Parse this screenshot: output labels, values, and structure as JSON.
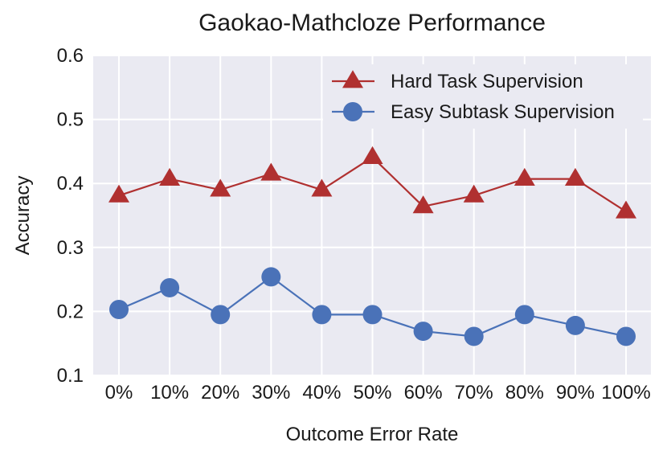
{
  "chart_data": {
    "type": "line",
    "title": "Gaokao-Mathcloze Performance",
    "xlabel": "Outcome Error Rate",
    "ylabel": "Accuracy",
    "categories": [
      "0%",
      "10%",
      "20%",
      "30%",
      "40%",
      "50%",
      "60%",
      "70%",
      "80%",
      "90%",
      "100%"
    ],
    "ylim": [
      0.1,
      0.6
    ],
    "yticks": [
      "0.1",
      "0.2",
      "0.3",
      "0.4",
      "0.5",
      "0.6"
    ],
    "grid": true,
    "legend_position": "top-right",
    "series": [
      {
        "name": "Hard Task Supervision",
        "marker": "triangle",
        "color": "#b03030",
        "values": [
          0.381,
          0.407,
          0.39,
          0.415,
          0.39,
          0.441,
          0.364,
          0.381,
          0.407,
          0.407,
          0.356
        ]
      },
      {
        "name": "Easy Subtask Supervision",
        "marker": "circle",
        "color": "#4a72b8",
        "values": [
          0.203,
          0.237,
          0.195,
          0.254,
          0.195,
          0.195,
          0.169,
          0.161,
          0.195,
          0.178,
          0.161
        ]
      }
    ]
  }
}
